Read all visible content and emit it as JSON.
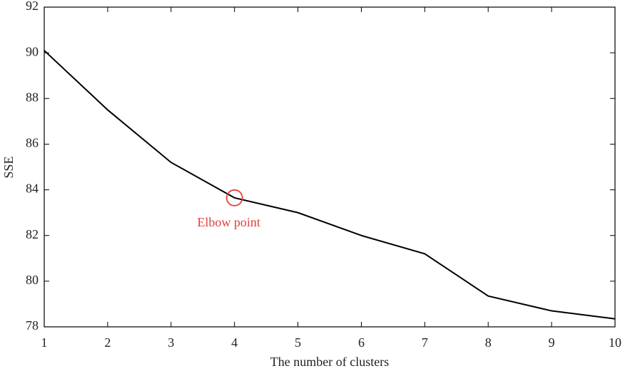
{
  "chart_data": {
    "type": "line",
    "x_label": "The number of clusters",
    "y_label": "SSE",
    "x": [
      1,
      2,
      3,
      4,
      5,
      6,
      7,
      8,
      9,
      10
    ],
    "series": [
      {
        "color": "#000000",
        "values": [
          90.1,
          87.5,
          85.2,
          83.65,
          83.0,
          82.0,
          81.2,
          79.35,
          78.7,
          78.35
        ]
      }
    ],
    "xlim": [
      1,
      10
    ],
    "xticks": [
      1,
      2,
      3,
      4,
      5,
      6,
      7,
      8,
      9,
      10
    ],
    "ylim": [
      78,
      92
    ],
    "yticks": [
      78,
      80,
      82,
      84,
      86,
      88,
      90,
      92
    ],
    "annotation": {
      "text": "Elbow point",
      "x": 4,
      "color": "#e0403a"
    }
  }
}
